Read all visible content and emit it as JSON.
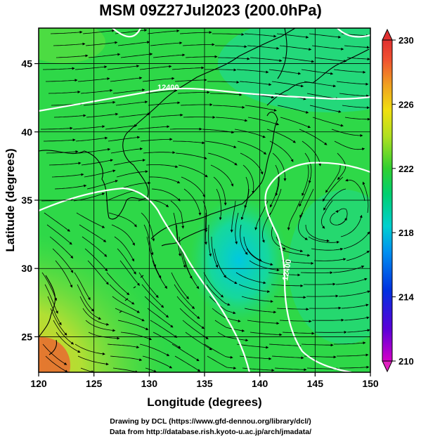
{
  "title": "MSM 09Z27Jul2023 (200.0hPa)",
  "credits": {
    "line1": "Drawing by DCL (https://www.gfd-dennou.org/library/dcl/)",
    "line2": "Data from http://database.rish.kyoto-u.ac.jp/arch/jmadata/"
  },
  "map": {
    "xlabel": "Longitude (degrees)",
    "ylabel": "Latitude  (degrees)",
    "lon_range": [
      120,
      150
    ],
    "lat_range": [
      22.4,
      47.6
    ],
    "lon_ticks": [
      "120",
      "125",
      "130",
      "135",
      "140",
      "145",
      "150"
    ],
    "lat_ticks": [
      "25",
      "30",
      "35",
      "40",
      "45"
    ],
    "contour_labels": [
      "12400",
      "12400"
    ],
    "colorbar": {
      "min": 210,
      "max": 230,
      "ticks": [
        "210",
        "214",
        "218",
        "222",
        "226",
        "230"
      ]
    },
    "features": [
      "temperature-shading",
      "streamlines",
      "geopotential-contours",
      "coastlines",
      "lat-lon-grid"
    ]
  }
}
